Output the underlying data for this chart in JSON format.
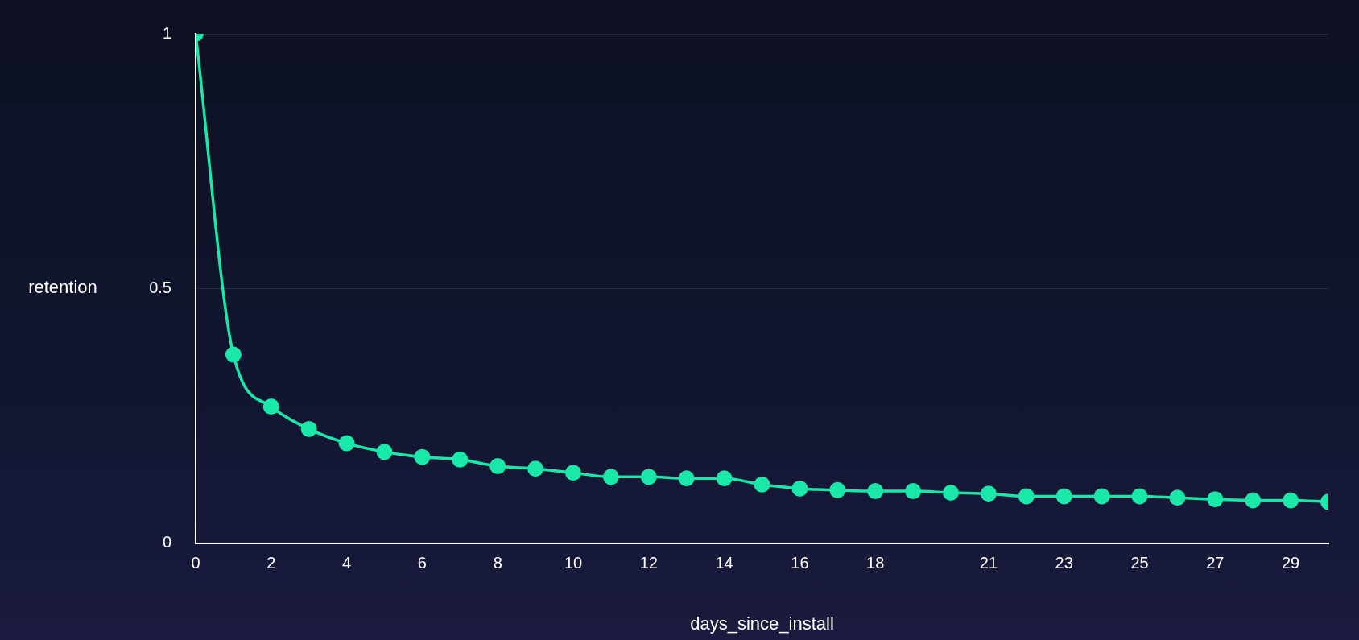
{
  "chart_data": {
    "type": "line",
    "xlabel": "days_since_install",
    "ylabel": "retention",
    "x": [
      0,
      1,
      2,
      3,
      4,
      5,
      6,
      7,
      8,
      9,
      10,
      11,
      12,
      13,
      14,
      15,
      16,
      17,
      18,
      19,
      20,
      21,
      22,
      23,
      24,
      25,
      26,
      27,
      28,
      29,
      30
    ],
    "series": [
      {
        "color": "#19e8a8",
        "values": [
          1,
          0.37,
          0.268,
          0.224,
          0.196,
          0.179,
          0.169,
          0.164,
          0.151,
          0.146,
          0.138,
          0.13,
          0.13,
          0.127,
          0.127,
          0.115,
          0.107,
          0.104,
          0.102,
          0.102,
          0.099,
          0.097,
          0.092,
          0.092,
          0.092,
          0.092,
          0.089,
          0.086,
          0.084,
          0.084,
          0.081
        ]
      }
    ],
    "xlim": [
      0,
      30
    ],
    "xticks": [
      0,
      2,
      4,
      6,
      8,
      10,
      12,
      14,
      16,
      18,
      21,
      23,
      25,
      27,
      29
    ],
    "ylim": [
      0,
      1
    ],
    "yticks": [
      0,
      0.5,
      1
    ],
    "grid": "y",
    "legend": false,
    "marker": "circle",
    "line_style": "solid"
  }
}
